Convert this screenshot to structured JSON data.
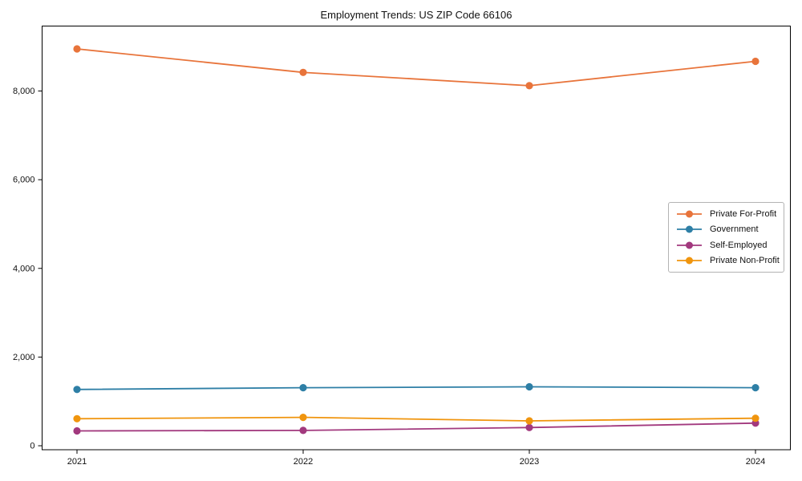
{
  "chart_data": {
    "type": "line",
    "title": "Employment Trends: US ZIP Code 66106",
    "x": [
      2021,
      2022,
      2023,
      2024
    ],
    "xtick_labels": [
      "2021",
      "2022",
      "2023",
      "2024"
    ],
    "yticks": [
      0,
      2000,
      4000,
      6000,
      8000
    ],
    "ytick_labels": [
      "0",
      "2,000",
      "4,000",
      "6,000",
      "8,000"
    ],
    "ylim": [
      -90,
      9465
    ],
    "xlabel": "",
    "ylabel": "",
    "grid": false,
    "legend_position": "center-right",
    "series": [
      {
        "name": "Private For-Profit",
        "color": "#e8743b",
        "values": [
          8950,
          8420,
          8120,
          8670
        ]
      },
      {
        "name": "Government",
        "color": "#2e7fa6",
        "values": [
          1270,
          1310,
          1330,
          1310
        ]
      },
      {
        "name": "Self-Employed",
        "color": "#a2397e",
        "values": [
          335,
          345,
          410,
          510
        ]
      },
      {
        "name": "Private Non-Profit",
        "color": "#f0950e",
        "values": [
          610,
          640,
          560,
          620
        ]
      }
    ]
  }
}
